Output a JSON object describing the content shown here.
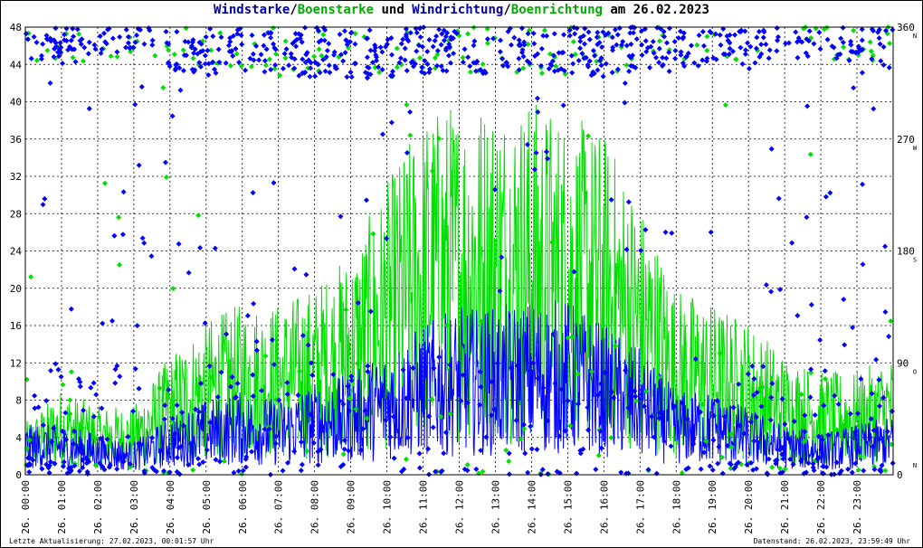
{
  "title": {
    "part1": "Windstarke",
    "sep1": "/",
    "part2": "Boenstarke",
    "mid": " und ",
    "part3": "Windrichtung",
    "sep2": "/",
    "part4": "Boenrichtung",
    "tail": " am 26.02.2023"
  },
  "colors": {
    "wind": "#0000ff",
    "gust": "#00e000",
    "grid": "#000000",
    "title_wind": "#0000aa",
    "title_gust": "#00aa00"
  },
  "footer": {
    "left": "Letzte Aktualisierung: 27.02.2023, 00:01:57 Uhr",
    "right": "Datenstand: 26.02.2023, 23:59:49 Uhr"
  },
  "chart_data": {
    "type": "line",
    "x_tick_labels": [
      "26. 00:00",
      "26. 01:00",
      "26. 02:00",
      "26. 03:00",
      "26. 04:00",
      "26. 05:00",
      "26. 06:00",
      "26. 07:00",
      "26. 08:00",
      "26. 09:00",
      "26. 10:00",
      "26. 11:00",
      "26. 12:00",
      "26. 13:00",
      "26. 14:00",
      "26. 15:00",
      "26. 16:00",
      "26. 17:00",
      "26. 18:00",
      "26. 19:00",
      "26. 20:00",
      "26. 21:00",
      "26. 22:00",
      "26. 23:00"
    ],
    "xlim_hours": [
      0,
      24
    ],
    "left_axis": {
      "ylim": [
        0,
        48
      ],
      "ticks": [
        "0",
        "4",
        "8",
        "12",
        "16",
        "20",
        "24",
        "28",
        "32",
        "36",
        "40",
        "44",
        "48"
      ]
    },
    "right_axis": {
      "ylim": [
        0,
        360
      ],
      "ticks": [
        "0",
        "90",
        "180",
        "270",
        "360"
      ],
      "compass": [
        "N",
        "O",
        "S",
        "W",
        "N"
      ]
    },
    "grid": true,
    "series": [
      {
        "name": "Windstarke",
        "kind": "line",
        "axis": "left",
        "hours": [
          0,
          1,
          2,
          3,
          4,
          5,
          6,
          7,
          8,
          9,
          10,
          11,
          12,
          13,
          14,
          15,
          16,
          17,
          18,
          19,
          20,
          21,
          22,
          23,
          24
        ],
        "values": [
          3,
          3,
          2.5,
          2,
          3.5,
          4.5,
          5,
          4.5,
          5.5,
          6,
          7.5,
          9,
          10,
          10,
          10.5,
          10.5,
          9,
          7.5,
          5,
          5,
          4,
          3,
          2.5,
          3,
          3.5
        ]
      },
      {
        "name": "Boenstarke",
        "kind": "line",
        "axis": "left",
        "hours": [
          0,
          1,
          2,
          3,
          4,
          5,
          6,
          7,
          8,
          9,
          10,
          11,
          12,
          13,
          14,
          15,
          16,
          17,
          18,
          19,
          20,
          21,
          22,
          23,
          24
        ],
        "values": [
          3,
          5,
          4,
          4,
          7,
          9,
          10,
          10,
          11,
          13,
          17,
          21,
          22,
          22,
          22,
          21,
          20,
          16,
          11,
          10,
          9,
          7,
          6,
          6,
          7
        ]
      },
      {
        "name": "Windrichtung",
        "kind": "points",
        "axis": "right",
        "hours": [
          0,
          1,
          2,
          3,
          4,
          5,
          6,
          7,
          8,
          9,
          10,
          11,
          12,
          13,
          14,
          15,
          16,
          17,
          18,
          19,
          20,
          21,
          22,
          23,
          24
        ],
        "values": [
          355,
          350,
          355,
          350,
          345,
          340,
          345,
          340,
          340,
          338,
          340,
          342,
          345,
          340,
          345,
          342,
          340,
          345,
          345,
          350,
          350,
          355,
          355,
          350,
          345
        ]
      },
      {
        "name": "Boenrichtung",
        "kind": "points",
        "axis": "right",
        "hours": [
          0,
          1,
          2,
          3,
          4,
          5,
          6,
          7,
          8,
          9,
          10,
          11,
          12,
          13,
          14,
          15,
          16,
          17,
          18,
          19,
          20,
          21,
          22,
          23,
          24
        ],
        "values": [
          350,
          348,
          352,
          350,
          342,
          340,
          343,
          341,
          342,
          340,
          341,
          343,
          344,
          342,
          343,
          341,
          342,
          344,
          346,
          349,
          351,
          353,
          354,
          351,
          347
        ]
      }
    ]
  }
}
